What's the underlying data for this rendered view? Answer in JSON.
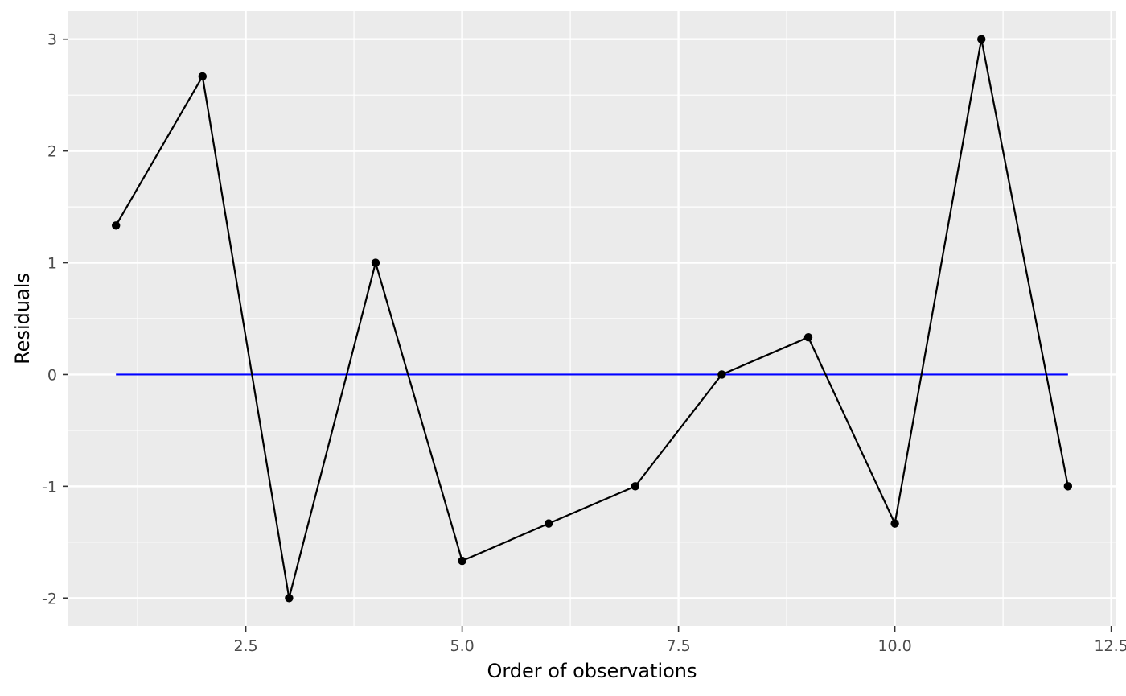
{
  "chart_data": {
    "type": "line",
    "title": "",
    "xlabel": "Order of observations",
    "ylabel": "Residuals",
    "xlim": [
      0.45,
      12.55
    ],
    "ylim": [
      -2.25,
      3.25
    ],
    "x_ticks": [
      2.5,
      5.0,
      7.5,
      10.0,
      12.5
    ],
    "x_tick_labels": [
      "2.5",
      "5.0",
      "7.5",
      "10.0",
      "12.5"
    ],
    "y_ticks": [
      -2,
      -1,
      0,
      1,
      2,
      3
    ],
    "y_tick_labels": [
      "-2",
      "-1",
      "0",
      "1",
      "2",
      "3"
    ],
    "grid": true,
    "legend": "none",
    "series": [
      {
        "x": [
          1,
          2,
          3,
          4,
          5,
          6,
          7,
          8,
          9,
          10,
          11,
          12
        ],
        "values": [
          1.333,
          2.667,
          -2.0,
          1.0,
          -1.667,
          -1.333,
          -1.0,
          0.0,
          0.333,
          -1.333,
          3.0,
          -1.0
        ],
        "color": "#000000",
        "markers": true
      }
    ],
    "reference_line": {
      "y": 0,
      "x_from": 1,
      "x_to": 12,
      "color": "#0000ff"
    },
    "panel_background": "#ebebeb",
    "grid_color": "#ffffff"
  }
}
